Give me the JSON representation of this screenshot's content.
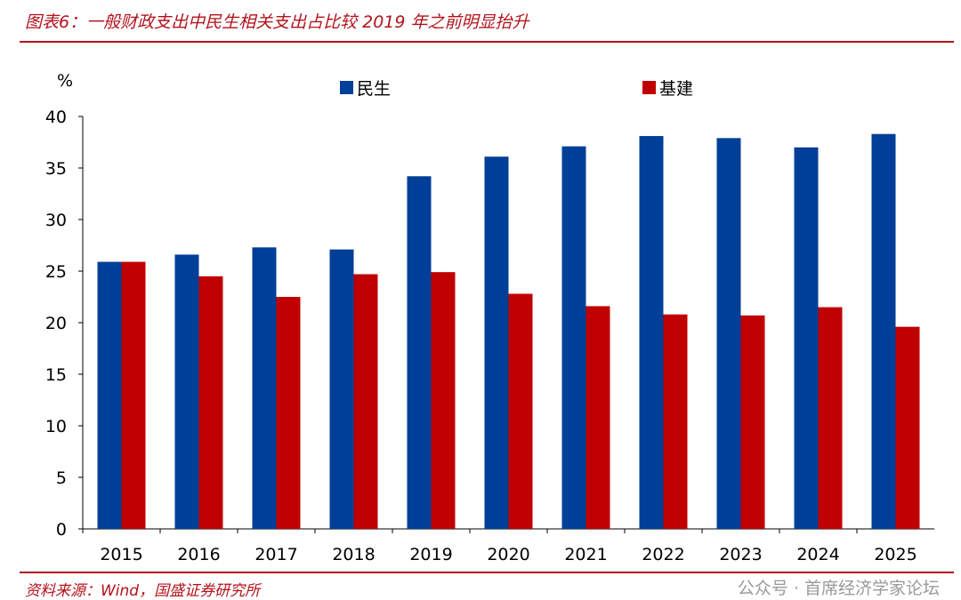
{
  "header": {
    "title": "图表6：一般财政支出中民生相关支出占比较 2019 年之前明显抬升"
  },
  "footer": {
    "source": "资料来源：Wind，国盛证券研究所",
    "watermark": "公众号 · 首席经济学家论坛"
  },
  "chart_data": {
    "type": "bar",
    "title": "一般财政支出中民生相关支出占比较 2019 年之前明显抬升",
    "ylabel": "%",
    "xlabel": "",
    "ylim": [
      0,
      40
    ],
    "yticks": [
      0,
      5,
      10,
      15,
      20,
      25,
      30,
      35,
      40
    ],
    "categories": [
      "2015",
      "2016",
      "2017",
      "2018",
      "2019",
      "2020",
      "2021",
      "2022",
      "2023",
      "2024",
      "2025"
    ],
    "series": [
      {
        "name": "民生",
        "color": "#003f98",
        "values": [
          25.9,
          26.6,
          27.3,
          27.1,
          34.2,
          36.1,
          37.1,
          38.1,
          37.9,
          37.0,
          38.3
        ]
      },
      {
        "name": "基建",
        "color": "#c00000",
        "values": [
          25.9,
          24.5,
          22.5,
          24.7,
          24.9,
          22.8,
          21.6,
          20.8,
          20.7,
          21.5,
          19.6
        ]
      }
    ],
    "legend": "top-center"
  }
}
